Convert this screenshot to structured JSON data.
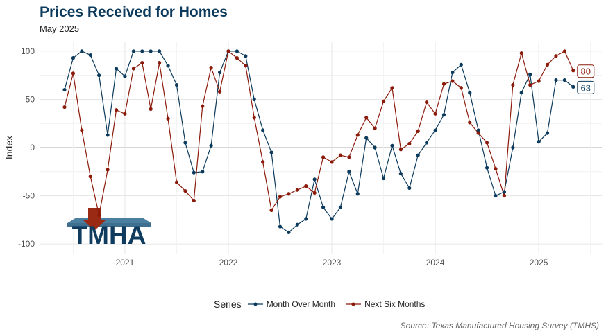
{
  "chart_data": {
    "type": "line",
    "title": "Prices Received for Homes",
    "subtitle": "May 2025",
    "ylabel": "Index",
    "xlabel": "",
    "ylim": [
      -110,
      110
    ],
    "yticks": [
      100,
      50,
      0,
      -50,
      -100
    ],
    "xtick_labels": [
      "2021",
      "2022",
      "2023",
      "2024",
      "2025"
    ],
    "x_start": "2020-06",
    "legend_title": "Series",
    "legend_position": "bottom",
    "caption": "Source: Texas Manufactured Housing Survey (TMHS)",
    "logo_text": "TMHA",
    "colors": {
      "mom": "#0b3a5c",
      "six": "#8b1a0a"
    },
    "series": [
      {
        "name": "Month Over Month",
        "end_label": "63",
        "values": [
          60,
          93,
          100,
          96,
          75,
          13,
          82,
          74,
          100,
          100,
          100,
          100,
          85,
          65,
          5,
          -26,
          -25,
          2,
          78,
          100,
          100,
          95,
          50,
          18,
          -5,
          -82,
          -88,
          -80,
          -74,
          -33,
          -62,
          -74,
          -62,
          -25,
          -48,
          10,
          0,
          -32,
          2,
          -27,
          -42,
          -8,
          5,
          18,
          34,
          78,
          86,
          57,
          18,
          -21,
          -50,
          -46,
          0,
          57,
          76,
          6,
          15,
          70,
          70,
          63
        ]
      },
      {
        "name": "Next Six Months",
        "end_label": "80",
        "values": [
          42,
          77,
          18,
          -30,
          -70,
          -23,
          39,
          35,
          82,
          88,
          40,
          88,
          30,
          -36,
          -45,
          -55,
          43,
          83,
          58,
          100,
          93,
          85,
          31,
          -15,
          -65,
          -51,
          -48,
          -44,
          -40,
          -47,
          -10,
          -15,
          -8,
          -10,
          13,
          31,
          20,
          48,
          62,
          -2,
          4,
          17,
          47,
          35,
          66,
          69,
          62,
          26,
          15,
          5,
          -22,
          -50,
          65,
          98,
          65,
          69,
          86,
          95,
          100,
          80
        ]
      }
    ]
  }
}
